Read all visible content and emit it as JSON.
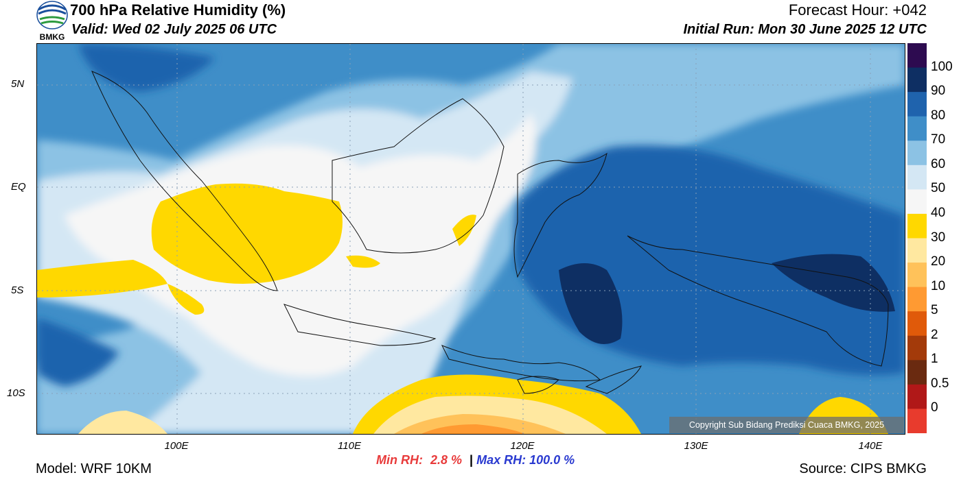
{
  "header": {
    "title": "700 hPa Relative Humidity (%)",
    "valid": "Valid: Wed 02 July 2025 06 UTC",
    "forecast_hour": "Forecast Hour: +042",
    "initial_run": "Initial Run: Mon 30 June 2025 12 UTC",
    "logo_text": "BMKG"
  },
  "axes": {
    "lat_labels": [
      "5N",
      "EQ",
      "5S",
      "10S"
    ],
    "lon_labels": [
      "100E",
      "110E",
      "120E",
      "130E",
      "140E"
    ]
  },
  "colorbar": {
    "labels": [
      "100",
      "90",
      "80",
      "70",
      "60",
      "50",
      "40",
      "30",
      "20",
      "10",
      "5",
      "2",
      "1",
      "0.5",
      "0"
    ],
    "colors": [
      "#2d0b50",
      "#0e2f63",
      "#1f63ad",
      "#3f8ec8",
      "#8cc2e4",
      "#d4e7f4",
      "#f6f6f6",
      "#ffd800",
      "#ffe8a0",
      "#ffc25a",
      "#ff9a32",
      "#e05a0a",
      "#a33a0a",
      "#6a2a10",
      "#b01818",
      "#e83b2d"
    ]
  },
  "stats": {
    "min_label": "Min RH:",
    "min_value": "2.8 %",
    "separator": "|",
    "max_label": "Max RH:",
    "max_value": "100.0 %"
  },
  "footer": {
    "model": "Model: WRF 10KM",
    "source": "Source: CIPS BMKG",
    "copyright": "Copyright Sub Bidang Prediksi Cuaca BMKG, 2025"
  }
}
